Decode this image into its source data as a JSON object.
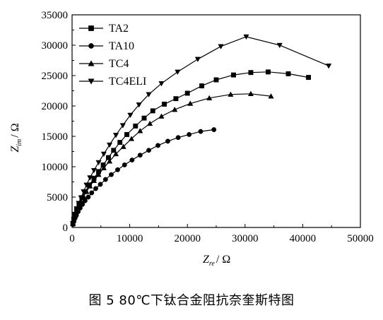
{
  "caption": "图 5   80℃下钛合金阻抗奈奎斯特图",
  "chart_data": {
    "type": "scatter",
    "title": "",
    "xlabel": {
      "main": "Z",
      "sub": "re",
      "unit": "/ Ω"
    },
    "ylabel": {
      "main": "Z",
      "sub": "im",
      "unit": "/ Ω"
    },
    "xlim": [
      0,
      50000
    ],
    "ylim": [
      0,
      35000
    ],
    "xticks": [
      0,
      10000,
      20000,
      30000,
      40000,
      50000
    ],
    "yticks": [
      0,
      5000,
      10000,
      15000,
      20000,
      25000,
      30000,
      35000
    ],
    "grid": false,
    "legend_position": "top-left",
    "series": [
      {
        "name": "TA2",
        "marker": "square",
        "x": [
          150,
          300,
          500,
          800,
          1200,
          1700,
          2300,
          3000,
          3800,
          4600,
          5400,
          6300,
          7200,
          8300,
          9500,
          11000,
          12500,
          14000,
          16000,
          18000,
          20000,
          22500,
          25000,
          28000,
          31000,
          34000,
          37500,
          41000
        ],
        "y": [
          600,
          1200,
          2000,
          2900,
          3900,
          4900,
          5900,
          7000,
          8100,
          9200,
          10300,
          11500,
          12700,
          14000,
          15300,
          16700,
          18000,
          19200,
          20300,
          21200,
          22100,
          23300,
          24300,
          25100,
          25500,
          25600,
          25300,
          24700
        ]
      },
      {
        "name": "TA10",
        "marker": "circle",
        "x": [
          150,
          300,
          500,
          750,
          1050,
          1400,
          1800,
          2250,
          2800,
          3400,
          4100,
          4900,
          5800,
          6800,
          7900,
          9100,
          10400,
          11800,
          13300,
          14900,
          16600,
          18400,
          20300,
          22300,
          24600
        ],
        "y": [
          500,
          1000,
          1500,
          2000,
          2600,
          3200,
          3800,
          4400,
          5000,
          5700,
          6400,
          7100,
          7900,
          8700,
          9500,
          10300,
          11100,
          11900,
          12700,
          13500,
          14200,
          14800,
          15300,
          15800,
          16100
        ]
      },
      {
        "name": "TC4",
        "marker": "triangle-up",
        "x": [
          150,
          300,
          500,
          800,
          1150,
          1550,
          2000,
          2500,
          3100,
          3800,
          4600,
          5500,
          6500,
          7600,
          8900,
          10300,
          11800,
          13500,
          15500,
          17800,
          20500,
          23800,
          27500,
          31000,
          34500
        ],
        "y": [
          600,
          1200,
          1900,
          2700,
          3500,
          4300,
          5100,
          5900,
          6800,
          7700,
          8700,
          9800,
          10900,
          12100,
          13300,
          14600,
          15900,
          17100,
          18300,
          19400,
          20400,
          21300,
          21900,
          22000,
          21600
        ]
      },
      {
        "name": "TC4ELI",
        "marker": "triangle-down",
        "x": [
          150,
          300,
          500,
          800,
          1150,
          1550,
          2000,
          2500,
          3100,
          3800,
          4600,
          5500,
          6500,
          7600,
          8800,
          10100,
          11600,
          13300,
          15500,
          18300,
          21800,
          25800,
          30200,
          36000,
          44500
        ],
        "y": [
          700,
          1400,
          2200,
          3100,
          4000,
          4900,
          5900,
          7000,
          8200,
          9400,
          10700,
          12100,
          13600,
          15200,
          16800,
          18500,
          20200,
          21900,
          23700,
          25600,
          27700,
          29800,
          31400,
          30000,
          26600
        ]
      }
    ]
  }
}
